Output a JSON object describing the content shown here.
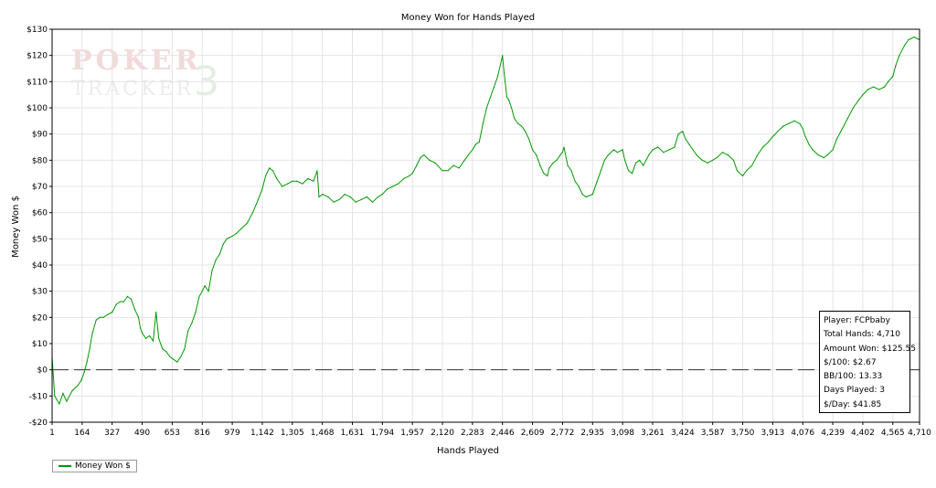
{
  "chart_data": {
    "type": "line",
    "title": "Money Won for Hands Played",
    "xlabel": "Hands Played",
    "ylabel": "Money Won $",
    "xlim": [
      1,
      4710
    ],
    "ylim": [
      -20,
      130
    ],
    "x_ticks": [
      1,
      164,
      327,
      490,
      653,
      816,
      979,
      1142,
      1305,
      1468,
      1631,
      1794,
      1957,
      2120,
      2283,
      2446,
      2609,
      2772,
      2935,
      3098,
      3261,
      3424,
      3587,
      3750,
      3913,
      4076,
      4239,
      4402,
      4565,
      4710
    ],
    "x_tick_labels": [
      "1",
      "164",
      "327",
      "490",
      "653",
      "816",
      "979",
      "1,142",
      "1,305",
      "1,468",
      "1,631",
      "1,794",
      "1,957",
      "2,120",
      "2,283",
      "2,446",
      "2,609",
      "2,772",
      "2,935",
      "3,098",
      "3,261",
      "3,424",
      "3,587",
      "3,750",
      "3,913",
      "4,076",
      "4,239",
      "4,402",
      "4,565",
      "4,710"
    ],
    "y_ticks": [
      -20,
      -10,
      0,
      10,
      20,
      30,
      40,
      50,
      60,
      70,
      80,
      90,
      100,
      110,
      120,
      130
    ],
    "y_tick_labels": [
      "-$20",
      "-$10",
      "$0",
      "$10",
      "$20",
      "$30",
      "$40",
      "$50",
      "$60",
      "$70",
      "$80",
      "$90",
      "$100",
      "$110",
      "$120",
      "$130"
    ],
    "grid": true,
    "legend_position": "bottom-left",
    "series": [
      {
        "name": "Money Won $",
        "color": "#009900",
        "points": [
          [
            1,
            5
          ],
          [
            15,
            -10
          ],
          [
            40,
            -13
          ],
          [
            60,
            -9
          ],
          [
            80,
            -12
          ],
          [
            110,
            -8
          ],
          [
            140,
            -6
          ],
          [
            160,
            -4
          ],
          [
            175,
            -1
          ],
          [
            190,
            3
          ],
          [
            205,
            8
          ],
          [
            220,
            14
          ],
          [
            240,
            19
          ],
          [
            260,
            20
          ],
          [
            280,
            20
          ],
          [
            300,
            21
          ],
          [
            327,
            22
          ],
          [
            350,
            25
          ],
          [
            370,
            26
          ],
          [
            390,
            26
          ],
          [
            410,
            28
          ],
          [
            430,
            27
          ],
          [
            450,
            23
          ],
          [
            470,
            20
          ],
          [
            480,
            16
          ],
          [
            490,
            14
          ],
          [
            510,
            12
          ],
          [
            530,
            13
          ],
          [
            550,
            11
          ],
          [
            565,
            22
          ],
          [
            580,
            12
          ],
          [
            600,
            8
          ],
          [
            620,
            7
          ],
          [
            640,
            5
          ],
          [
            660,
            4
          ],
          [
            680,
            3
          ],
          [
            700,
            5
          ],
          [
            720,
            8
          ],
          [
            740,
            15
          ],
          [
            760,
            18
          ],
          [
            780,
            22
          ],
          [
            800,
            28
          ],
          [
            816,
            30
          ],
          [
            830,
            32
          ],
          [
            850,
            30
          ],
          [
            870,
            38
          ],
          [
            890,
            42
          ],
          [
            910,
            44
          ],
          [
            930,
            48
          ],
          [
            950,
            50
          ],
          [
            979,
            51
          ],
          [
            1000,
            52
          ],
          [
            1030,
            54
          ],
          [
            1060,
            56
          ],
          [
            1090,
            60
          ],
          [
            1120,
            65
          ],
          [
            1142,
            69
          ],
          [
            1160,
            74
          ],
          [
            1180,
            77
          ],
          [
            1200,
            76
          ],
          [
            1220,
            73
          ],
          [
            1250,
            70
          ],
          [
            1280,
            71
          ],
          [
            1305,
            72
          ],
          [
            1330,
            72
          ],
          [
            1360,
            71
          ],
          [
            1390,
            73
          ],
          [
            1420,
            72
          ],
          [
            1440,
            76
          ],
          [
            1450,
            66
          ],
          [
            1470,
            67
          ],
          [
            1500,
            66
          ],
          [
            1530,
            64
          ],
          [
            1560,
            65
          ],
          [
            1590,
            67
          ],
          [
            1620,
            66
          ],
          [
            1650,
            64
          ],
          [
            1680,
            65
          ],
          [
            1710,
            66
          ],
          [
            1740,
            64
          ],
          [
            1770,
            66
          ],
          [
            1794,
            67
          ],
          [
            1820,
            69
          ],
          [
            1850,
            70
          ],
          [
            1880,
            71
          ],
          [
            1910,
            73
          ],
          [
            1940,
            74
          ],
          [
            1957,
            75
          ],
          [
            1980,
            78
          ],
          [
            2000,
            81
          ],
          [
            2020,
            82
          ],
          [
            2050,
            80
          ],
          [
            2080,
            79
          ],
          [
            2120,
            76
          ],
          [
            2150,
            76
          ],
          [
            2180,
            78
          ],
          [
            2210,
            77
          ],
          [
            2240,
            80
          ],
          [
            2260,
            82
          ],
          [
            2283,
            84
          ],
          [
            2300,
            86
          ],
          [
            2320,
            87
          ],
          [
            2340,
            94
          ],
          [
            2360,
            100
          ],
          [
            2380,
            104
          ],
          [
            2400,
            108
          ],
          [
            2420,
            112
          ],
          [
            2440,
            118
          ],
          [
            2446,
            120
          ],
          [
            2455,
            113
          ],
          [
            2470,
            104
          ],
          [
            2480,
            103
          ],
          [
            2495,
            100
          ],
          [
            2510,
            96
          ],
          [
            2530,
            94
          ],
          [
            2550,
            93
          ],
          [
            2570,
            91
          ],
          [
            2590,
            88
          ],
          [
            2609,
            84
          ],
          [
            2630,
            82
          ],
          [
            2650,
            78
          ],
          [
            2670,
            75
          ],
          [
            2690,
            74
          ],
          [
            2700,
            77
          ],
          [
            2720,
            79
          ],
          [
            2740,
            80
          ],
          [
            2760,
            82
          ],
          [
            2772,
            83
          ],
          [
            2780,
            85
          ],
          [
            2800,
            78
          ],
          [
            2820,
            76
          ],
          [
            2840,
            72
          ],
          [
            2860,
            70
          ],
          [
            2880,
            67
          ],
          [
            2900,
            66
          ],
          [
            2935,
            67
          ],
          [
            2960,
            72
          ],
          [
            2980,
            76
          ],
          [
            3000,
            80
          ],
          [
            3020,
            82
          ],
          [
            3050,
            84
          ],
          [
            3070,
            83
          ],
          [
            3098,
            84
          ],
          [
            3110,
            80
          ],
          [
            3130,
            76
          ],
          [
            3150,
            75
          ],
          [
            3170,
            79
          ],
          [
            3190,
            80
          ],
          [
            3210,
            78
          ],
          [
            3240,
            82
          ],
          [
            3261,
            84
          ],
          [
            3290,
            85
          ],
          [
            3320,
            83
          ],
          [
            3350,
            84
          ],
          [
            3380,
            85
          ],
          [
            3400,
            90
          ],
          [
            3424,
            91
          ],
          [
            3440,
            88
          ],
          [
            3460,
            86
          ],
          [
            3480,
            84
          ],
          [
            3500,
            82
          ],
          [
            3530,
            80
          ],
          [
            3560,
            79
          ],
          [
            3587,
            80
          ],
          [
            3610,
            81
          ],
          [
            3640,
            83
          ],
          [
            3670,
            82
          ],
          [
            3700,
            80
          ],
          [
            3720,
            76
          ],
          [
            3750,
            74
          ],
          [
            3770,
            76
          ],
          [
            3800,
            78
          ],
          [
            3830,
            82
          ],
          [
            3860,
            85
          ],
          [
            3890,
            87
          ],
          [
            3913,
            89
          ],
          [
            3940,
            91
          ],
          [
            3970,
            93
          ],
          [
            4000,
            94
          ],
          [
            4030,
            95
          ],
          [
            4060,
            94
          ],
          [
            4076,
            92
          ],
          [
            4090,
            89
          ],
          [
            4110,
            86
          ],
          [
            4130,
            84
          ],
          [
            4160,
            82
          ],
          [
            4190,
            81
          ],
          [
            4210,
            82
          ],
          [
            4239,
            84
          ],
          [
            4260,
            88
          ],
          [
            4290,
            92
          ],
          [
            4320,
            96
          ],
          [
            4350,
            100
          ],
          [
            4380,
            103
          ],
          [
            4402,
            105
          ],
          [
            4430,
            107
          ],
          [
            4460,
            108
          ],
          [
            4490,
            107
          ],
          [
            4520,
            108
          ],
          [
            4540,
            110
          ],
          [
            4565,
            112
          ],
          [
            4580,
            116
          ],
          [
            4600,
            120
          ],
          [
            4630,
            124
          ],
          [
            4650,
            126
          ],
          [
            4680,
            127
          ],
          [
            4710,
            126
          ]
        ]
      }
    ]
  },
  "watermark": {
    "line1": "POKER",
    "line2": "TRACKER",
    "mark": "3"
  },
  "stats_box": {
    "player": "Player: FCPbaby",
    "total_hands": "Total Hands: 4,710",
    "amount_won": "Amount Won: $125.55",
    "per_100": "$/100: $2.67",
    "bb_per_100": "BB/100: 13.33",
    "days_played": "Days Played: 3",
    "per_day": "$/Day: $41.85"
  },
  "legend": {
    "label": "Money Won $",
    "color": "#009900"
  }
}
